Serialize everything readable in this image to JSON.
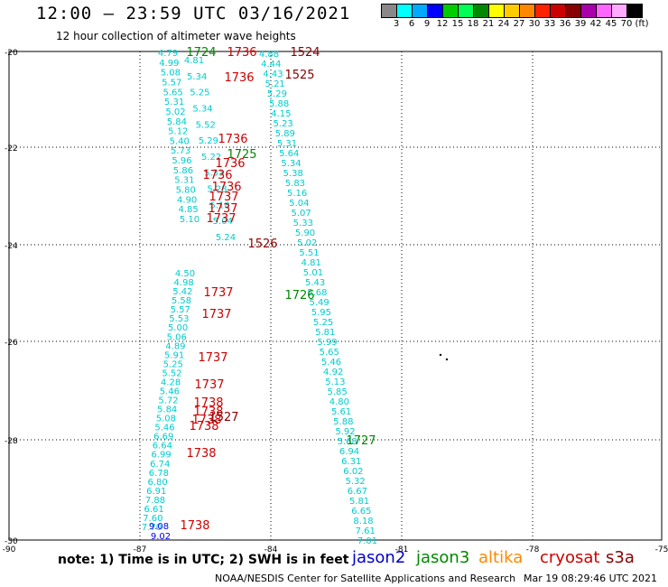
{
  "title": "12:00 – 23:59 UTC 03/16/2021",
  "subtitle": "12 hour collection of altimeter wave heights",
  "colorbar": {
    "colors": [
      "#888888",
      "#00ffff",
      "#00aaff",
      "#0000ff",
      "#00cc00",
      "#00ff55",
      "#008800",
      "#ffff00",
      "#ffcc00",
      "#ff8800",
      "#ff2200",
      "#cc0000",
      "#880000",
      "#aa00aa",
      "#ff66ff",
      "#ffaaff",
      "#000000"
    ],
    "labels": [
      "3",
      "6",
      "9",
      "12",
      "15",
      "18",
      "21",
      "24",
      "27",
      "30",
      "33",
      "36",
      "39",
      "42",
      "45",
      "70",
      "(ft)"
    ]
  },
  "axes": {
    "lat_ticks": [
      "-20",
      "-22",
      "-24",
      "-26",
      "-28",
      "-30"
    ],
    "lon_ticks": [
      "-90",
      "-87",
      "-84",
      "-81",
      "-78",
      "-75"
    ]
  },
  "tracks": [
    {
      "color": "#00cccc",
      "labels": [
        "4.79",
        "4.99",
        "5.08",
        "5.57",
        "5.65",
        "5.31",
        "5.02",
        "5.84",
        "5.12",
        "5.40",
        "5.73",
        "5.96",
        "5.86",
        "5.31",
        "5.80",
        "4.90",
        "4.85",
        "5.10"
      ]
    },
    {
      "color": "#00cccc",
      "labels": [
        "4.81",
        "5.34",
        "5.25",
        "5.34",
        "5.52",
        "5.29",
        "5.22",
        "5.33",
        "5.28",
        "5.18",
        "5.04",
        "5.24"
      ]
    },
    {
      "color": "#00cccc",
      "labels": [
        "4.88",
        "4.44",
        "4.43",
        "5.21",
        "5.29",
        "5.88",
        "4.15",
        "5.23",
        "5.89",
        "5.31",
        "5.64",
        "5.34",
        "5.38",
        "5.83",
        "5.16",
        "5.04",
        "5.07",
        "5.33",
        "5.90",
        "5.02",
        "5.51",
        "4.81",
        "5.01",
        "5.43",
        "5.68",
        "5.49",
        "5.95",
        "5.25",
        "5.81",
        "5.99",
        "5.65",
        "5.46",
        "4.92",
        "5.13",
        "5.85",
        "4.80",
        "5.61",
        "5.88",
        "5.92",
        "5.68",
        "6.94",
        "6.31",
        "6.02",
        "5.32",
        "6.67",
        "5.81",
        "6.65",
        "8.18",
        "7.61",
        "7.01"
      ]
    },
    {
      "color": "#00cccc",
      "labels": [
        "4.50",
        "4.98",
        "5.42",
        "5.58",
        "5.57",
        "5.53",
        "5.00",
        "5.06",
        "4.89",
        "5.91",
        "5.25",
        "5.52",
        "4.28",
        "5.46",
        "5.72",
        "5.84",
        "5.08",
        "5.46",
        "6.69",
        "6.64",
        "6.99",
        "6.74",
        "6.78",
        "6.80",
        "6.91",
        "7.88",
        "6.61",
        "7.60",
        "7.70"
      ]
    },
    {
      "color": "#0000ee",
      "labels": [
        "9.08",
        "9.02"
      ]
    }
  ],
  "track_ids": [
    {
      "text": "1724",
      "color": "#008800"
    },
    {
      "text": "1736",
      "color": "#cc0000"
    },
    {
      "text": "1524",
      "color": "#880000"
    },
    {
      "text": "1736",
      "color": "#cc0000"
    },
    {
      "text": "1525",
      "color": "#880000"
    },
    {
      "text": "1736",
      "color": "#cc0000"
    },
    {
      "text": "1725",
      "color": "#008800"
    },
    {
      "text": "1736",
      "color": "#cc0000"
    },
    {
      "text": "1736",
      "color": "#cc0000"
    },
    {
      "text": "1736",
      "color": "#cc0000"
    },
    {
      "text": "1737",
      "color": "#cc0000"
    },
    {
      "text": "1737",
      "color": "#cc0000"
    },
    {
      "text": "1737",
      "color": "#cc0000"
    },
    {
      "text": "1526",
      "color": "#880000"
    },
    {
      "text": "1737",
      "color": "#cc0000"
    },
    {
      "text": "1726",
      "color": "#008800"
    },
    {
      "text": "1737",
      "color": "#cc0000"
    },
    {
      "text": "1737",
      "color": "#cc0000"
    },
    {
      "text": "1737",
      "color": "#cc0000"
    },
    {
      "text": "1738",
      "color": "#cc0000"
    },
    {
      "text": "1738",
      "color": "#cc0000"
    },
    {
      "text": "1738",
      "color": "#cc0000"
    },
    {
      "text": "1527",
      "color": "#880000"
    },
    {
      "text": "1738",
      "color": "#cc0000"
    },
    {
      "text": "1727",
      "color": "#008800"
    },
    {
      "text": "1738",
      "color": "#cc0000"
    },
    {
      "text": "1738",
      "color": "#cc0000"
    }
  ],
  "note": "note:  1) Time is in UTC;  2) SWH is in feet",
  "legend": [
    {
      "text": "jason2",
      "color": "#0000cc"
    },
    {
      "text": "jason3",
      "color": "#008800"
    },
    {
      "text": "altika",
      "color": "#ff8800"
    },
    {
      "text": "cryosat",
      "color": "#cc0000"
    },
    {
      "text": "s3a",
      "color": "#880000"
    }
  ],
  "footer": "NOAA/NESDIS Center for Satellite Applications and Research",
  "timestamp": "Mar 19 08:29:46 UTC 2021"
}
